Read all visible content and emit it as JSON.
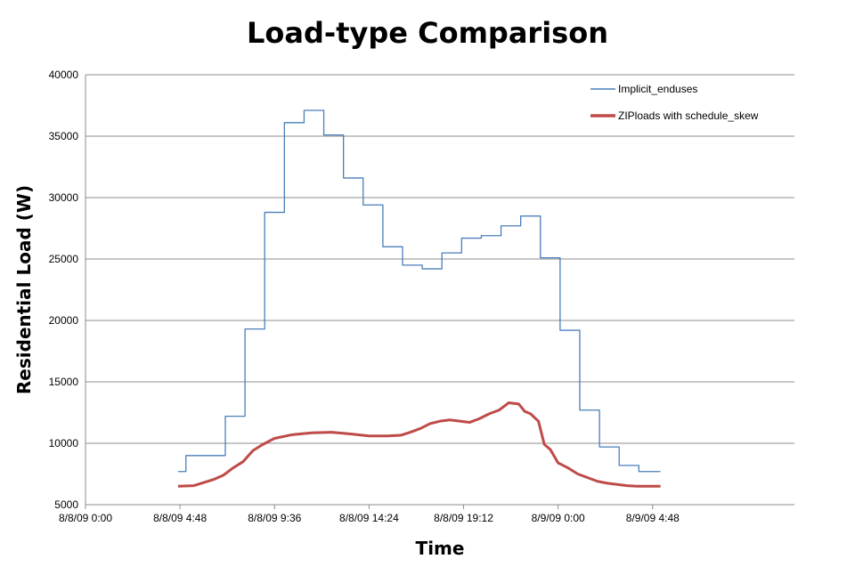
{
  "chart_data": {
    "type": "line",
    "title": "Load-type Comparison",
    "xlabel": "Time",
    "ylabel": "Residential Load (W)",
    "x_range_hours": [
      0,
      36
    ],
    "x_ticks": [
      {
        "hour": 0,
        "label": "8/8/09 0:00"
      },
      {
        "hour": 4.8,
        "label": "8/8/09 4:48"
      },
      {
        "hour": 9.6,
        "label": "8/8/09 9:36"
      },
      {
        "hour": 14.4,
        "label": "8/8/09 14:24"
      },
      {
        "hour": 19.2,
        "label": "8/8/09 19:12"
      },
      {
        "hour": 24,
        "label": "8/9/09 0:00"
      },
      {
        "hour": 28.8,
        "label": "8/9/09 4:48"
      }
    ],
    "ylim": [
      5000,
      40000
    ],
    "y_ticks": [
      5000,
      10000,
      15000,
      20000,
      25000,
      30000,
      35000,
      40000
    ],
    "grid": "horizontal",
    "legend": "top-right",
    "series": [
      {
        "name": "Implicit_enduses",
        "color": "#4a7ebb",
        "step": true,
        "x": [
          4.7,
          5.1,
          6.1,
          7.1,
          8.1,
          9.1,
          10.1,
          11.1,
          12.1,
          13.1,
          14.1,
          15.1,
          16.1,
          17.1,
          18.1,
          19.1,
          20.1,
          21.1,
          22.1,
          23.1,
          24.1,
          25.1,
          26.1,
          27.1,
          28.1,
          29.2
        ],
        "values": [
          7700,
          9000,
          9000,
          12200,
          19300,
          28800,
          36100,
          37100,
          35100,
          31600,
          29400,
          26000,
          24500,
          24200,
          25500,
          26700,
          26900,
          27700,
          28500,
          25100,
          19200,
          12700,
          9700,
          8200,
          7700,
          7700
        ]
      },
      {
        "name": "ZIPloads with schedule_skew",
        "color": "#be4b48",
        "step": false,
        "x": [
          4.7,
          5.5,
          6.0,
          6.5,
          7.0,
          7.5,
          8.0,
          8.5,
          9.0,
          9.6,
          10.5,
          11.5,
          12.5,
          13.5,
          14.4,
          15.3,
          16.0,
          16.5,
          17.0,
          17.5,
          18.0,
          18.5,
          19.0,
          19.5,
          20.0,
          20.5,
          21.0,
          21.5,
          22.0,
          22.3,
          22.6,
          23.0,
          23.3,
          23.6,
          24.0,
          24.5,
          25.0,
          25.5,
          26.0,
          26.5,
          27.0,
          27.5,
          28.0,
          29.2
        ],
        "values": [
          6500,
          6550,
          6800,
          7050,
          7400,
          8000,
          8500,
          9400,
          9900,
          10400,
          10700,
          10850,
          10900,
          10750,
          10600,
          10600,
          10650,
          10900,
          11200,
          11600,
          11800,
          11900,
          11800,
          11700,
          12000,
          12400,
          12700,
          13300,
          13200,
          12600,
          12400,
          11800,
          9900,
          9500,
          8400,
          8000,
          7500,
          7200,
          6900,
          6750,
          6650,
          6550,
          6500,
          6500
        ]
      }
    ]
  }
}
